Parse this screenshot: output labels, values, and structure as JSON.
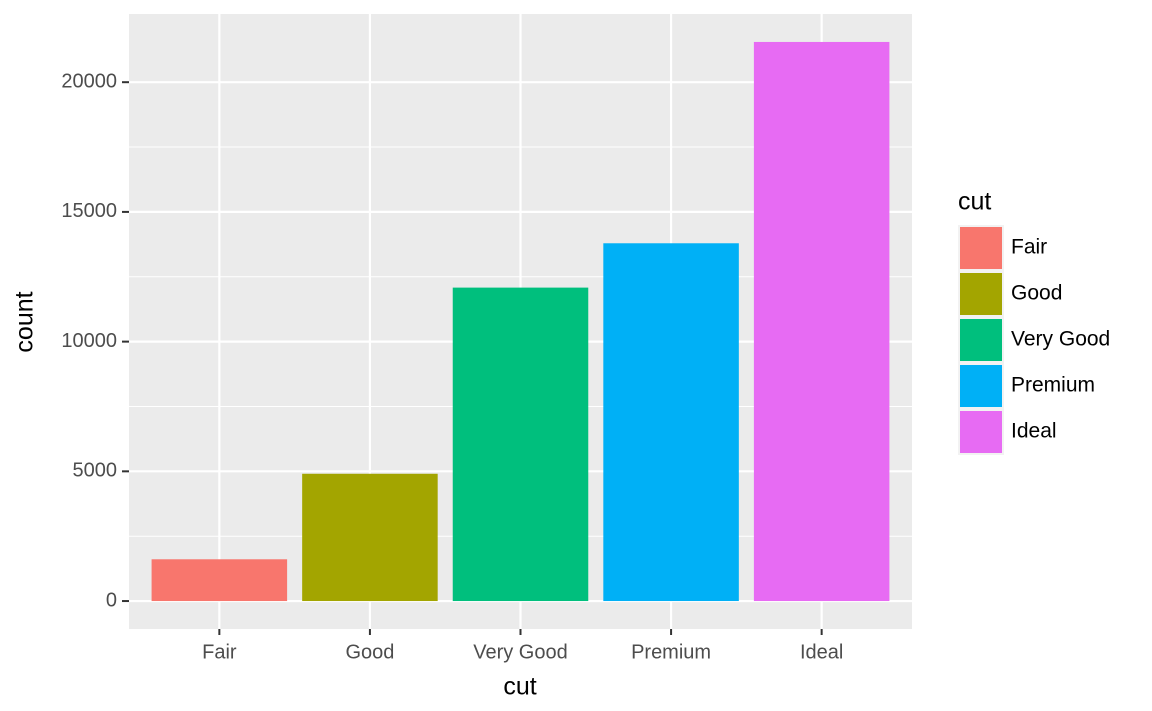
{
  "chart_data": {
    "type": "bar",
    "xlabel": "cut",
    "ylabel": "count",
    "legend_title": "cut",
    "categories": [
      "Fair",
      "Good",
      "Very Good",
      "Premium",
      "Ideal"
    ],
    "values": [
      1610,
      4906,
      12082,
      13791,
      21551
    ],
    "colors": [
      "#f8766d",
      "#a3a500",
      "#00bf7d",
      "#00b0f6",
      "#e76bf3"
    ],
    "ylim": [
      -1077.55,
      22628.55
    ],
    "yticks": [
      0,
      5000,
      10000,
      15000,
      20000
    ],
    "grid": true,
    "legend": "right"
  }
}
